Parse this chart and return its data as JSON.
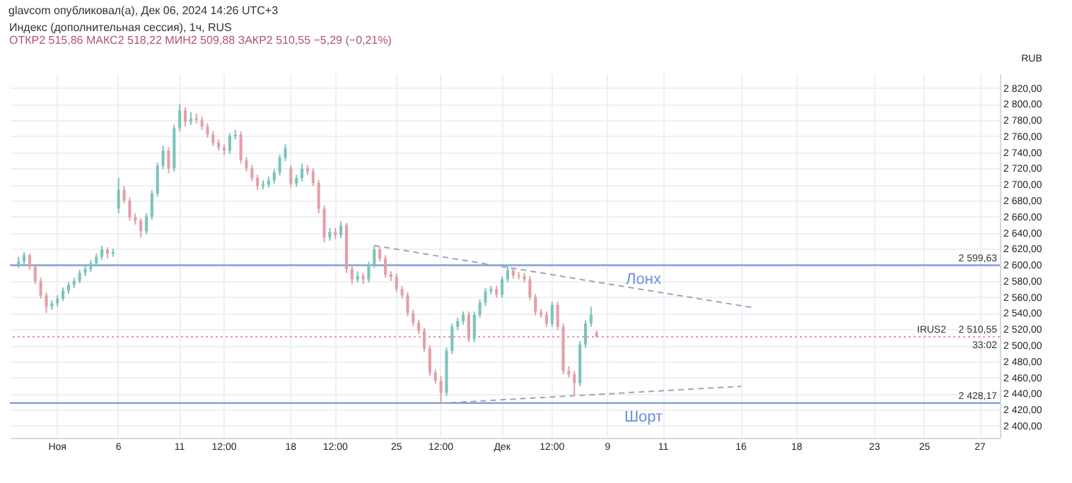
{
  "chart_data": {
    "type": "candlestick",
    "title": "Индекс (дополнительная сессия), 1ч, RUS",
    "subtitle": "ОТКР2 515,86 МАКС2 518,22 МИН2 509,88 ЗАКР2 510,55 −5,29 (−0,21%)",
    "ylabel": "RUB",
    "annotations": [
      "glavcom опубликовал(а), Дек 06, 2024 14:26 UTC+3",
      {
        "text": "2 599,63",
        "y": 2599.63
      },
      {
        "text": "2 428,17",
        "y": 2428.17
      },
      {
        "text": "2 510,55",
        "y": 2510.55
      },
      {
        "text": "33:02",
        "y": 2510.55
      },
      {
        "text": "IRUS2",
        "y": 2510.55
      }
    ],
    "categories": [
      null,
      null,
      null,
      null,
      null,
      null,
      null,
      null,
      "Ноя",
      null,
      null,
      null,
      null,
      null,
      null,
      null,
      null,
      null,
      null,
      "6",
      null,
      null,
      null,
      null,
      null,
      null,
      null,
      null,
      null,
      null,
      "11",
      null,
      null,
      null,
      null,
      null,
      null,
      null,
      "12:00",
      null,
      null,
      null,
      null,
      null,
      null,
      null,
      null,
      null,
      null,
      null,
      "18",
      null,
      null,
      null,
      null,
      null,
      null,
      null,
      "12:00",
      null,
      null,
      null,
      null,
      null,
      null,
      null,
      null,
      null,
      null,
      "25",
      null,
      null,
      null,
      null,
      null,
      null,
      null,
      "12:00",
      null,
      null,
      null,
      null,
      null,
      null,
      null,
      null,
      null,
      null,
      "Дек",
      null,
      null,
      null,
      null,
      null,
      null,
      null,
      null,
      "12:00",
      null,
      null,
      null,
      null,
      null,
      null,
      null,
      null,
      null,
      "9",
      null,
      null,
      null,
      null,
      null,
      null,
      null,
      null,
      null,
      "11",
      null,
      null,
      null,
      null,
      null,
      null,
      null,
      null,
      null,
      null,
      null,
      null,
      null,
      "16",
      null,
      null,
      null,
      null,
      null,
      null,
      null,
      null,
      null,
      "18",
      null,
      null,
      null,
      null,
      null,
      null,
      null,
      null,
      null,
      null,
      null,
      null,
      null,
      "23",
      null,
      null,
      null,
      null,
      null,
      null,
      null,
      null,
      "25",
      null,
      null,
      null,
      null,
      null,
      null,
      null,
      null,
      null,
      "27",
      null,
      null,
      null
    ],
    "ohlc": [
      null,
      [
        2600,
        2610,
        2596,
        2604
      ],
      [
        2604,
        2616,
        2600,
        2612
      ],
      [
        2612,
        2614,
        2594,
        2598
      ],
      [
        2598,
        2601,
        2576,
        2580
      ],
      [
        2580,
        2584,
        2558,
        2562
      ],
      [
        2562,
        2566,
        2540,
        2548
      ],
      [
        2548,
        2556,
        2544,
        2552
      ],
      [
        2552,
        2562,
        2548,
        2558
      ],
      [
        2558,
        2572,
        2555,
        2568
      ],
      [
        2568,
        2579,
        2564,
        2575
      ],
      [
        2575,
        2584,
        2571,
        2580
      ],
      [
        2580,
        2594,
        2577,
        2590
      ],
      [
        2590,
        2599,
        2586,
        2595
      ],
      [
        2595,
        2606,
        2591,
        2602
      ],
      [
        2602,
        2614,
        2598,
        2610
      ],
      [
        2610,
        2624,
        2606,
        2619
      ],
      [
        2619,
        2622,
        2608,
        2614
      ],
      [
        2614,
        2620,
        2610,
        2616
      ],
      [
        2670,
        2708,
        2664,
        2693
      ],
      [
        2693,
        2698,
        2676,
        2680
      ],
      [
        2680,
        2684,
        2655,
        2659
      ],
      [
        2659,
        2664,
        2650,
        2655
      ],
      [
        2655,
        2658,
        2634,
        2642
      ],
      [
        2642,
        2664,
        2638,
        2660
      ],
      [
        2660,
        2693,
        2656,
        2689
      ],
      [
        2689,
        2727,
        2685,
        2723
      ],
      [
        2723,
        2748,
        2719,
        2742
      ],
      [
        2742,
        2746,
        2714,
        2720
      ],
      [
        2720,
        2774,
        2716,
        2770
      ],
      [
        2770,
        2800,
        2766,
        2792
      ],
      [
        2792,
        2796,
        2772,
        2778
      ],
      [
        2778,
        2790,
        2774,
        2782
      ],
      [
        2782,
        2788,
        2776,
        2780
      ],
      [
        2780,
        2784,
        2768,
        2772
      ],
      [
        2772,
        2776,
        2758,
        2762
      ],
      [
        2762,
        2766,
        2748,
        2752
      ],
      [
        2752,
        2756,
        2742,
        2746
      ],
      [
        2746,
        2750,
        2736,
        2742
      ],
      [
        2742,
        2764,
        2738,
        2760
      ],
      [
        2760,
        2768,
        2756,
        2762
      ],
      [
        2762,
        2766,
        2726,
        2730
      ],
      [
        2730,
        2734,
        2716,
        2720
      ],
      [
        2720,
        2724,
        2704,
        2708
      ],
      [
        2708,
        2712,
        2693,
        2698
      ],
      [
        2698,
        2705,
        2694,
        2700
      ],
      [
        2700,
        2710,
        2696,
        2705
      ],
      [
        2705,
        2719,
        2701,
        2715
      ],
      [
        2715,
        2737,
        2711,
        2733
      ],
      [
        2733,
        2750,
        2729,
        2745
      ],
      [
        2720,
        2724,
        2696,
        2701
      ],
      [
        2701,
        2712,
        2697,
        2708
      ],
      [
        2708,
        2726,
        2704,
        2720
      ],
      [
        2720,
        2724,
        2712,
        2716
      ],
      [
        2716,
        2720,
        2698,
        2702
      ],
      [
        2702,
        2706,
        2664,
        2670
      ],
      [
        2670,
        2674,
        2628,
        2634
      ],
      [
        2634,
        2646,
        2630,
        2641
      ],
      [
        2641,
        2646,
        2632,
        2637
      ],
      [
        2637,
        2654,
        2633,
        2649
      ],
      [
        2649,
        2652,
        2590,
        2595
      ],
      [
        2595,
        2600,
        2576,
        2582
      ],
      [
        2582,
        2592,
        2578,
        2586
      ],
      [
        2586,
        2590,
        2576,
        2582
      ],
      [
        2582,
        2604,
        2578,
        2600
      ],
      [
        2600,
        2624,
        2596,
        2619
      ],
      [
        2619,
        2622,
        2604,
        2608
      ],
      [
        2608,
        2612,
        2584,
        2588
      ],
      [
        2588,
        2592,
        2580,
        2585
      ],
      [
        2585,
        2589,
        2566,
        2570
      ],
      [
        2570,
        2574,
        2558,
        2562
      ],
      [
        2562,
        2566,
        2536,
        2540
      ],
      [
        2540,
        2544,
        2524,
        2528
      ],
      [
        2528,
        2532,
        2514,
        2518
      ],
      [
        2518,
        2522,
        2492,
        2496
      ],
      [
        2496,
        2500,
        2462,
        2466
      ],
      [
        2466,
        2470,
        2452,
        2456
      ],
      [
        2456,
        2462,
        2428.17,
        2441
      ],
      [
        2441,
        2497,
        2437,
        2493
      ],
      [
        2493,
        2527,
        2489,
        2523
      ],
      [
        2523,
        2534,
        2519,
        2530
      ],
      [
        2530,
        2542,
        2526,
        2538
      ],
      [
        2538,
        2542,
        2504,
        2508
      ],
      [
        2508,
        2542,
        2504,
        2538
      ],
      [
        2538,
        2557,
        2534,
        2553
      ],
      [
        2553,
        2571,
        2549,
        2567
      ],
      [
        2567,
        2574,
        2563,
        2570
      ],
      [
        2570,
        2574,
        2559,
        2563
      ],
      [
        2563,
        2586,
        2559,
        2582
      ],
      [
        2582,
        2599.63,
        2578,
        2593
      ],
      [
        2593,
        2597,
        2583,
        2587
      ],
      [
        2587,
        2591,
        2582,
        2586
      ],
      [
        2586,
        2590,
        2578,
        2582
      ],
      [
        2582,
        2586,
        2556,
        2560
      ],
      [
        2560,
        2564,
        2537,
        2541
      ],
      [
        2541,
        2545,
        2534,
        2538
      ],
      [
        2538,
        2542,
        2523,
        2527
      ],
      [
        2527,
        2554,
        2523,
        2550
      ],
      [
        2550,
        2554,
        2519,
        2523
      ],
      [
        2523,
        2527,
        2464,
        2468
      ],
      [
        2468,
        2474,
        2460,
        2464
      ],
      [
        2464,
        2468,
        2437,
        2453
      ],
      [
        2453,
        2505,
        2449,
        2501
      ],
      [
        2501,
        2531,
        2497,
        2527
      ],
      [
        2527,
        2548,
        2523,
        2538
      ],
      [
        2515.86,
        2518.22,
        2509.88,
        2510.55
      ],
      null,
      null,
      null,
      null,
      null,
      null,
      null,
      null,
      null,
      null,
      null,
      null,
      null,
      null,
      null,
      null,
      null,
      null,
      null,
      null,
      null,
      null,
      null,
      null,
      null,
      null,
      null,
      null,
      null,
      null,
      null,
      null,
      null,
      null,
      null,
      null,
      null,
      null,
      null,
      null,
      null,
      null,
      null,
      null,
      null,
      null,
      null,
      null,
      null,
      null,
      null,
      null,
      null,
      null,
      null,
      null,
      null,
      null,
      null,
      null,
      null,
      null,
      null,
      null,
      null,
      null,
      null,
      null,
      null,
      null,
      null,
      null
    ],
    "series": [
      {
        "type": "line",
        "color": "#9ba6bd",
        "line_style": "dashed",
        "values": [
          null,
          null,
          null,
          null,
          null,
          null,
          null,
          null,
          null,
          null,
          null,
          null,
          null,
          null,
          null,
          null,
          null,
          null,
          null,
          null,
          null,
          null,
          null,
          null,
          null,
          null,
          null,
          null,
          null,
          null,
          null,
          null,
          null,
          null,
          null,
          null,
          null,
          null,
          null,
          null,
          null,
          null,
          null,
          null,
          null,
          null,
          null,
          null,
          null,
          null,
          null,
          null,
          null,
          null,
          null,
          null,
          null,
          null,
          null,
          null,
          null,
          null,
          null,
          null,
          null,
          2624,
          null,
          null,
          null,
          null,
          null,
          null,
          null,
          null,
          null,
          null,
          null,
          null,
          null,
          null,
          null,
          null,
          null,
          null,
          null,
          null,
          null,
          null,
          null,
          null,
          null,
          null,
          null,
          null,
          null,
          null,
          null,
          null,
          null,
          null,
          null,
          null,
          null,
          null,
          null,
          null,
          null,
          null,
          null,
          null,
          null,
          null,
          null,
          null,
          null,
          null,
          null,
          null,
          null,
          null,
          null,
          null,
          null,
          null,
          null,
          null,
          null,
          null,
          null,
          null,
          null,
          null,
          null,
          2547,
          null,
          null,
          null,
          null,
          null,
          null,
          null,
          null,
          null,
          null,
          null,
          null,
          null,
          null,
          null,
          null,
          null,
          null,
          null,
          null,
          null,
          null,
          null,
          null,
          null,
          null,
          null,
          null,
          null,
          null,
          null,
          null,
          null,
          null,
          null,
          null,
          null,
          null,
          null,
          null,
          null,
          null,
          null,
          null
        ]
      },
      {
        "type": "line",
        "color": "#9ba6bd",
        "line_style": "dashed",
        "values": [
          null,
          null,
          null,
          null,
          null,
          null,
          null,
          null,
          null,
          null,
          null,
          null,
          null,
          null,
          null,
          null,
          null,
          null,
          null,
          null,
          null,
          null,
          null,
          null,
          null,
          null,
          null,
          null,
          null,
          null,
          null,
          null,
          null,
          null,
          null,
          null,
          null,
          null,
          null,
          null,
          null,
          null,
          null,
          null,
          null,
          null,
          null,
          null,
          null,
          null,
          null,
          null,
          null,
          null,
          null,
          null,
          null,
          null,
          null,
          null,
          null,
          null,
          null,
          null,
          null,
          null,
          null,
          null,
          null,
          null,
          null,
          null,
          null,
          null,
          null,
          null,
          null,
          2428,
          null,
          null,
          null,
          null,
          null,
          null,
          null,
          null,
          null,
          null,
          null,
          null,
          null,
          null,
          null,
          null,
          null,
          null,
          null,
          null,
          null,
          null,
          null,
          null,
          null,
          null,
          null,
          null,
          null,
          null,
          null,
          null,
          null,
          null,
          null,
          null,
          null,
          null,
          null,
          null,
          null,
          null,
          null,
          null,
          null,
          null,
          null,
          null,
          null,
          null,
          null,
          null,
          null,
          2449,
          null,
          null,
          null,
          null,
          null,
          null,
          null,
          null,
          null,
          null,
          null,
          null,
          null,
          null,
          null,
          null,
          null,
          null,
          null,
          null,
          null,
          null,
          null,
          null,
          null,
          null,
          null,
          null,
          null,
          null,
          null,
          null,
          null,
          null,
          null,
          null,
          null,
          null,
          null,
          null,
          null,
          null,
          null,
          null,
          null,
          null
        ]
      }
    ],
    "ref_lines": [
      {
        "axis": "y",
        "value": 2599.63,
        "label": "Лонх",
        "color": "#6b8fd6"
      },
      {
        "axis": "y",
        "value": 2428.17,
        "label": "Шорт",
        "color": "#6b8fd6"
      },
      {
        "axis": "y",
        "value": 2510.55,
        "color": "#e79aa2",
        "line_style": "dotted"
      }
    ],
    "ylim": [
      2385,
      2838
    ],
    "yticks": [
      {
        "value": 2400,
        "label": "2 400,00"
      },
      {
        "value": 2420,
        "label": "2 420,00"
      },
      {
        "value": 2440,
        "label": "2 440,00"
      },
      {
        "value": 2460,
        "label": "2 460,00"
      },
      {
        "value": 2480,
        "label": "2 480,00"
      },
      {
        "value": 2500,
        "label": "2 500,00"
      },
      {
        "value": 2520,
        "label": "2 520,00"
      },
      {
        "value": 2540,
        "label": "2 540,00"
      },
      {
        "value": 2560,
        "label": "2 560,00"
      },
      {
        "value": 2580,
        "label": "2 580,00"
      },
      {
        "value": 2600,
        "label": "2 600,00"
      },
      {
        "value": 2620,
        "label": "2 620,00"
      },
      {
        "value": 2640,
        "label": "2 640,00"
      },
      {
        "value": 2660,
        "label": "2 660,00"
      },
      {
        "value": 2680,
        "label": "2 680,00"
      },
      {
        "value": 2700,
        "label": "2 700,00"
      },
      {
        "value": 2720,
        "label": "2 720,00"
      },
      {
        "value": 2740,
        "label": "2 740,00"
      },
      {
        "value": 2760,
        "label": "2 760,00"
      },
      {
        "value": 2780,
        "label": "2 780,00"
      },
      {
        "value": 2800,
        "label": "2 800,00"
      },
      {
        "value": 2820,
        "label": "2 820,00"
      }
    ],
    "grid": true
  }
}
